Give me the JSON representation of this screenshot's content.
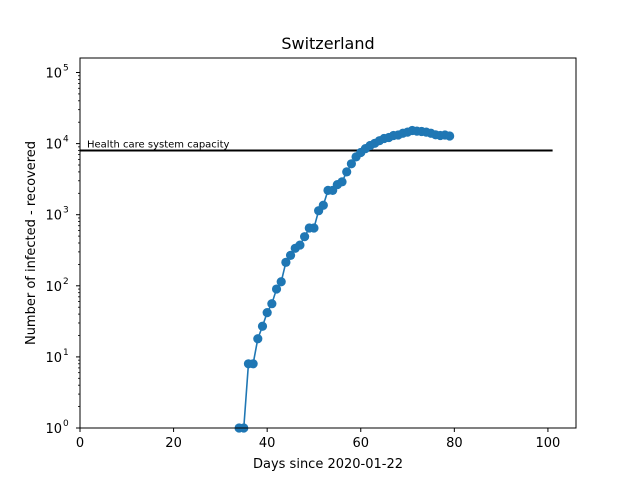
{
  "chart_data": {
    "type": "line",
    "title": "Switzerland",
    "xlabel": "Days since 2020-01-22",
    "ylabel": "Number of infected - recovered",
    "xlim": [
      0,
      106
    ],
    "ylim": [
      1,
      160000
    ],
    "yscale": "log",
    "grid": false,
    "x_ticks": [
      0,
      20,
      40,
      60,
      80,
      100
    ],
    "x_tick_labels": [
      "0",
      "20",
      "40",
      "60",
      "80",
      "100"
    ],
    "y_ticks": [
      1,
      10,
      100,
      1000,
      10000,
      100000
    ],
    "y_tick_exponents": [
      "0",
      "1",
      "2",
      "3",
      "4",
      "5"
    ],
    "y_tick_base": "10",
    "series": [
      {
        "color": "#1f77b4",
        "marker": "circle",
        "x": [
          34,
          35,
          36,
          37,
          38,
          39,
          40,
          41,
          42,
          43,
          44,
          45,
          46,
          47,
          48,
          49,
          50,
          51,
          52,
          53,
          54,
          55,
          56,
          57,
          58,
          59,
          60,
          61,
          62,
          63,
          64,
          65,
          66,
          67,
          68,
          69,
          70,
          71,
          72,
          73,
          74,
          75,
          76,
          77,
          78,
          79
        ],
        "y": [
          1,
          1,
          8,
          8,
          18,
          27,
          42,
          56,
          90,
          114,
          214,
          268,
          337,
          374,
          491,
          650,
          650,
          1139,
          1359,
          2200,
          2200,
          2650,
          2900,
          4000,
          5200,
          6500,
          7500,
          8500,
          9400,
          10100,
          11000,
          11800,
          12200,
          13000,
          13200,
          14000,
          14500,
          15300,
          15000,
          14800,
          14500,
          14000,
          13300,
          13000,
          13200,
          12800
        ]
      }
    ],
    "reference_line": {
      "y": 8000,
      "color": "#000000",
      "x_start": 0,
      "x_end": 101,
      "label": "Health care system capacity"
    }
  }
}
